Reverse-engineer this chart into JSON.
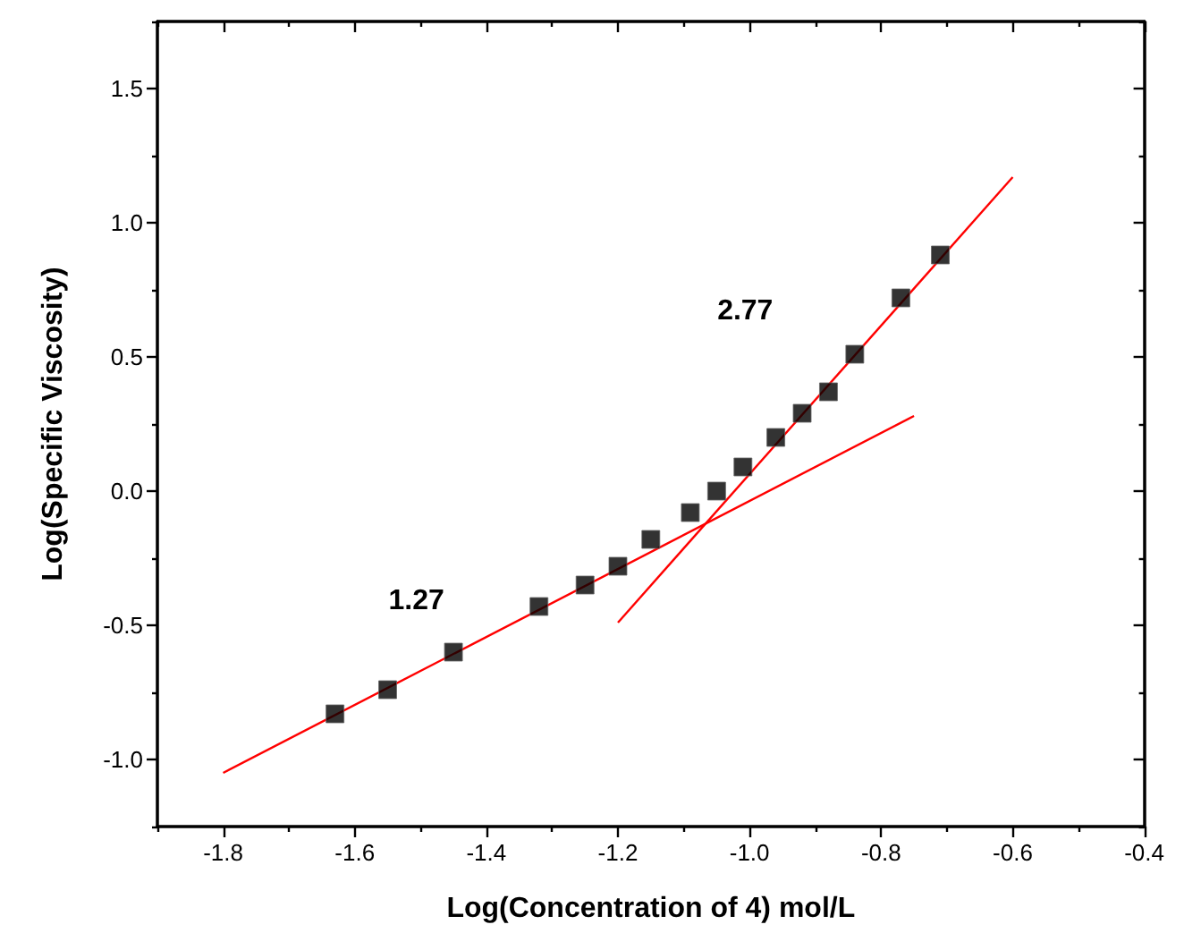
{
  "chart_data": {
    "type": "scatter",
    "xlabel": "Log(Concentration of 4) mol/L",
    "ylabel": "Log(Specific Viscosity)",
    "xlim": [
      -1.9,
      -0.4
    ],
    "xticks": [
      {
        "value": -1.8,
        "label": "-1.8"
      },
      {
        "value": -1.6,
        "label": "-1.6"
      },
      {
        "value": -1.4,
        "label": "-1.4"
      },
      {
        "value": -1.2,
        "label": "-1.2"
      },
      {
        "value": -1.0,
        "label": "-1.0"
      },
      {
        "value": -0.8,
        "label": "-0.8"
      },
      {
        "value": -0.6,
        "label": "-0.6"
      },
      {
        "value": -0.4,
        "label": "-0.4"
      }
    ],
    "ylim": [
      -1.25,
      1.75
    ],
    "yticks": [
      {
        "value": -1.0,
        "label": "-1.0"
      },
      {
        "value": -0.5,
        "label": "-0.5"
      },
      {
        "value": 0.0,
        "label": "0.0"
      },
      {
        "value": 0.5,
        "label": "0.5"
      },
      {
        "value": 1.0,
        "label": "1.0"
      },
      {
        "value": 1.5,
        "label": "1.5"
      }
    ],
    "grid": false,
    "marker": "square",
    "series": [
      {
        "type": "scatter",
        "color": "#000000",
        "x": [
          -1.63,
          -1.55,
          -1.45,
          -1.32,
          -1.25,
          -1.2,
          -1.15,
          -1.09,
          -1.05,
          -1.01,
          -0.96,
          -0.92,
          -0.88,
          -0.84,
          -0.77,
          -0.71
        ],
        "values": [
          -0.83,
          -0.74,
          -0.6,
          -0.43,
          -0.35,
          -0.28,
          -0.18,
          -0.08,
          0.0,
          0.09,
          0.2,
          0.29,
          0.37,
          0.51,
          0.72,
          0.88
        ]
      },
      {
        "type": "line",
        "marker": "none",
        "color": "#ff0000",
        "x": [
          -1.8,
          -0.75
        ],
        "values": [
          -1.05,
          0.28
        ]
      },
      {
        "type": "line",
        "marker": "none",
        "color": "#ff0000",
        "x": [
          -1.2,
          -0.6
        ],
        "values": [
          -0.49,
          1.17
        ]
      }
    ],
    "annotations": [
      "1.27",
      "2.77"
    ]
  }
}
